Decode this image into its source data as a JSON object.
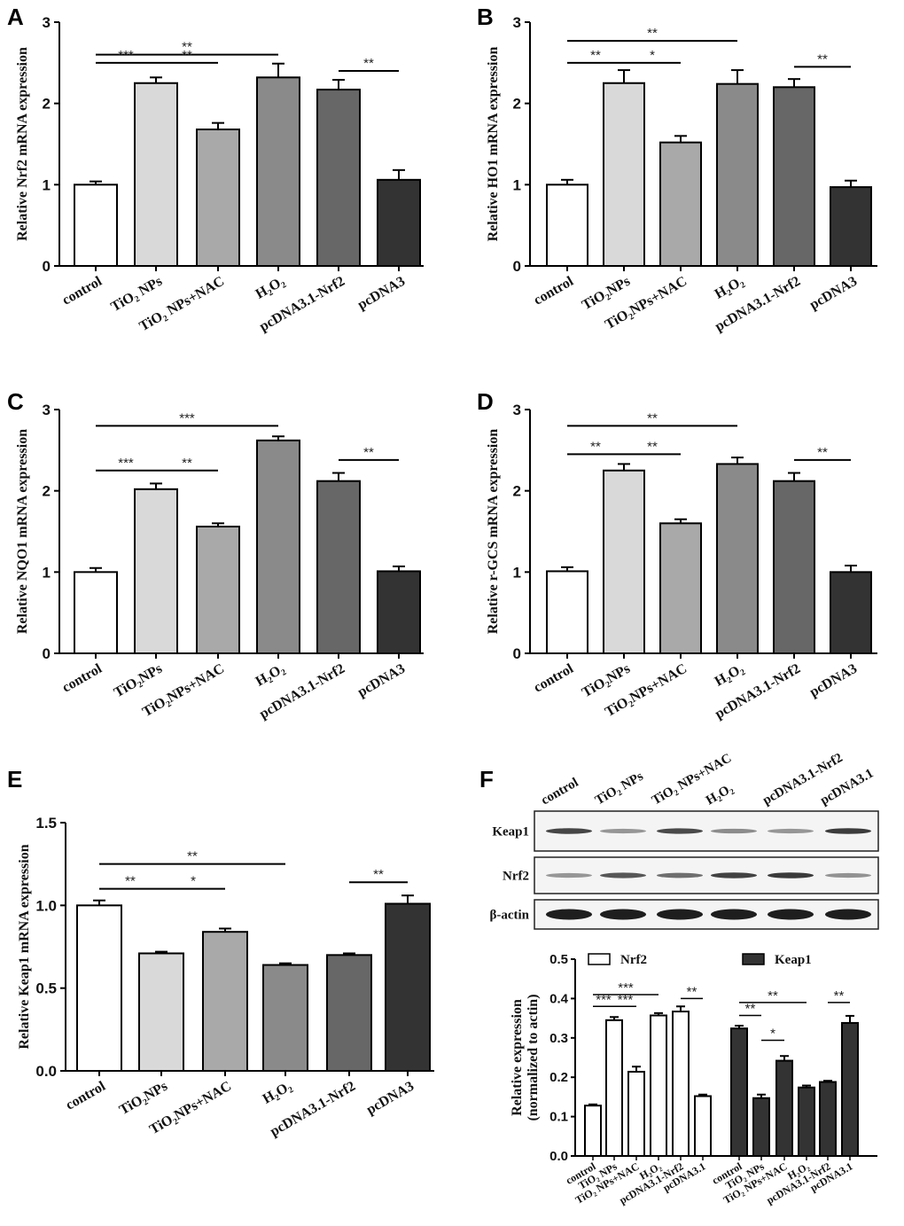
{
  "chart_data": [
    {
      "panel": "A",
      "type": "bar",
      "ylabel": "Relative Nrf2 mRNA expression",
      "ylim": [
        0,
        3
      ],
      "yticks": [
        "0",
        "1",
        "2",
        "3"
      ],
      "categories": [
        "control",
        "TiO₂ NPs",
        "TiO₂ NPs+NAC",
        "H₂O₂",
        "pcDNA3.1-Nrf2",
        "pcDNA3"
      ],
      "values": [
        1.0,
        2.25,
        1.68,
        2.32,
        2.17,
        1.06
      ],
      "errors": [
        0.04,
        0.07,
        0.08,
        0.17,
        0.12,
        0.12
      ],
      "significance": [
        {
          "from": 0,
          "to": 3,
          "level": 2.6,
          "label": "**"
        },
        {
          "from": 0,
          "to": 1,
          "level": 2.5,
          "label": "***"
        },
        {
          "from": 1,
          "to": 2,
          "level": 2.5,
          "label": "**"
        },
        {
          "from": 4,
          "to": 5,
          "level": 2.4,
          "label": "**"
        }
      ]
    },
    {
      "panel": "B",
      "type": "bar",
      "ylabel": "Relative HO1 mRNA expression",
      "ylim": [
        0,
        3
      ],
      "yticks": [
        "0",
        "1",
        "2",
        "3"
      ],
      "categories": [
        "control",
        "TiO₂NPs",
        "TiO₂NPs+NAC",
        "H₂O₂",
        "pcDNA3.1-Nrf2",
        "pcDNA3"
      ],
      "values": [
        1.0,
        2.25,
        1.52,
        2.24,
        2.2,
        0.97
      ],
      "errors": [
        0.06,
        0.16,
        0.08,
        0.17,
        0.1,
        0.08
      ],
      "significance": [
        {
          "from": 0,
          "to": 3,
          "level": 2.77,
          "label": "**"
        },
        {
          "from": 0,
          "to": 1,
          "level": 2.5,
          "label": "**"
        },
        {
          "from": 1,
          "to": 2,
          "level": 2.5,
          "label": "*"
        },
        {
          "from": 4,
          "to": 5,
          "level": 2.45,
          "label": "**"
        }
      ]
    },
    {
      "panel": "C",
      "type": "bar",
      "ylabel": "Relative NQO1 mRNA expression",
      "ylim": [
        0,
        3
      ],
      "yticks": [
        "0",
        "1",
        "2",
        "3"
      ],
      "categories": [
        "control",
        "TiO₂NPs",
        "TiO₂NPs+NAC",
        "H₂O₂",
        "pcDNA3.1-Nrf2",
        "pcDNA3"
      ],
      "values": [
        1.0,
        2.02,
        1.56,
        2.62,
        2.12,
        1.01
      ],
      "errors": [
        0.05,
        0.07,
        0.04,
        0.05,
        0.1,
        0.06
      ],
      "significance": [
        {
          "from": 0,
          "to": 3,
          "level": 2.8,
          "label": "***"
        },
        {
          "from": 0,
          "to": 1,
          "level": 2.25,
          "label": "***"
        },
        {
          "from": 1,
          "to": 2,
          "level": 2.25,
          "label": "**"
        },
        {
          "from": 4,
          "to": 5,
          "level": 2.38,
          "label": "**"
        }
      ]
    },
    {
      "panel": "D",
      "type": "bar",
      "ylabel": "Relative r-GCS mRNA expression",
      "ylim": [
        0,
        3
      ],
      "yticks": [
        "0",
        "1",
        "2",
        "3"
      ],
      "categories": [
        "control",
        "TiO₂NPs",
        "TiO₂NPs+NAC",
        "H₂O₂",
        "pcDNA3.1-Nrf2",
        "pcDNA3"
      ],
      "values": [
        1.01,
        2.25,
        1.6,
        2.33,
        2.12,
        1.0
      ],
      "errors": [
        0.05,
        0.08,
        0.05,
        0.08,
        0.1,
        0.08
      ],
      "significance": [
        {
          "from": 0,
          "to": 3,
          "level": 2.8,
          "label": "**"
        },
        {
          "from": 0,
          "to": 1,
          "level": 2.45,
          "label": "**"
        },
        {
          "from": 1,
          "to": 2,
          "level": 2.45,
          "label": "**"
        },
        {
          "from": 4,
          "to": 5,
          "level": 2.38,
          "label": "**"
        }
      ]
    },
    {
      "panel": "E",
      "type": "bar",
      "ylabel": "Relative Keap1 mRNA expression",
      "ylim": [
        0,
        1.5
      ],
      "yticks": [
        "0.0",
        "0.5",
        "1.0",
        "1.5"
      ],
      "categories": [
        "control",
        "TiO₂NPs",
        "TiO₂NPs+NAC",
        "H₂O₂",
        "pcDNA3.1-Nrf2",
        "pcDNA3"
      ],
      "values": [
        1.0,
        0.71,
        0.84,
        0.64,
        0.7,
        1.01
      ],
      "errors": [
        0.03,
        0.01,
        0.02,
        0.01,
        0.01,
        0.05
      ],
      "significance": [
        {
          "from": 0,
          "to": 3,
          "level": 1.25,
          "label": "**"
        },
        {
          "from": 0,
          "to": 1,
          "level": 1.1,
          "label": "**"
        },
        {
          "from": 1,
          "to": 2,
          "level": 1.1,
          "label": "*"
        },
        {
          "from": 4,
          "to": 5,
          "level": 1.14,
          "label": "**"
        }
      ]
    },
    {
      "panel": "F",
      "type": "bar",
      "ylabel": "Relative expression",
      "ylabel2": "(normalized to actin)",
      "ylim": [
        0,
        0.5
      ],
      "yticks": [
        "0.0",
        "0.1",
        "0.2",
        "0.3",
        "0.4",
        "0.5"
      ],
      "categories": [
        "control",
        "TiO₂ NPs",
        "TiO₂ NPs+NAC",
        "H₂O₂",
        "pcDNA3.1-Nrf2",
        "pcDNA3.1"
      ],
      "legend": "top",
      "series": [
        {
          "name": "Nrf2",
          "color": "#ffffff",
          "values": [
            0.128,
            0.345,
            0.214,
            0.357,
            0.367,
            0.152
          ],
          "errors": [
            0.003,
            0.008,
            0.013,
            0.006,
            0.013,
            0.004
          ],
          "significance": [
            {
              "from": 0,
              "to": 3,
              "level": 0.41,
              "label": "***"
            },
            {
              "from": 0,
              "to": 1,
              "level": 0.38,
              "label": "***"
            },
            {
              "from": 1,
              "to": 2,
              "level": 0.38,
              "label": "***"
            },
            {
              "from": 4,
              "to": 5,
              "level": 0.4,
              "label": "**"
            }
          ]
        },
        {
          "name": "Keap1",
          "color": "#333333",
          "values": [
            0.324,
            0.147,
            0.242,
            0.174,
            0.188,
            0.338
          ],
          "errors": [
            0.007,
            0.009,
            0.012,
            0.005,
            0.003,
            0.018
          ],
          "significance": [
            {
              "from": 0,
              "to": 3,
              "level": 0.39,
              "label": "**"
            },
            {
              "from": 0,
              "to": 1,
              "level": 0.357,
              "label": "**"
            },
            {
              "from": 1,
              "to": 2,
              "level": 0.294,
              "label": "*"
            },
            {
              "from": 4,
              "to": 5,
              "level": 0.39,
              "label": "**"
            }
          ]
        }
      ]
    }
  ],
  "bar_colors": [
    "#ffffff",
    "#d9d9d9",
    "#a9a9a9",
    "#8a8a8a",
    "#676767",
    "#333333"
  ],
  "western_blot": {
    "lanes": [
      "control",
      "TiO₂ NPs",
      "TiO₂ NPs+NAC",
      "H₂O₂",
      "pcDNA3.1-Nrf2",
      "pcDNA3.1"
    ],
    "rows": [
      {
        "label": "Keap1",
        "intensity": [
          0.8,
          0.4,
          0.78,
          0.45,
          0.4,
          0.85
        ]
      },
      {
        "label": "Nrf2",
        "intensity": [
          0.4,
          0.72,
          0.6,
          0.82,
          0.86,
          0.42
        ]
      },
      {
        "label": "β-actin",
        "intensity": [
          1,
          1,
          1,
          1,
          1,
          1
        ]
      }
    ]
  }
}
